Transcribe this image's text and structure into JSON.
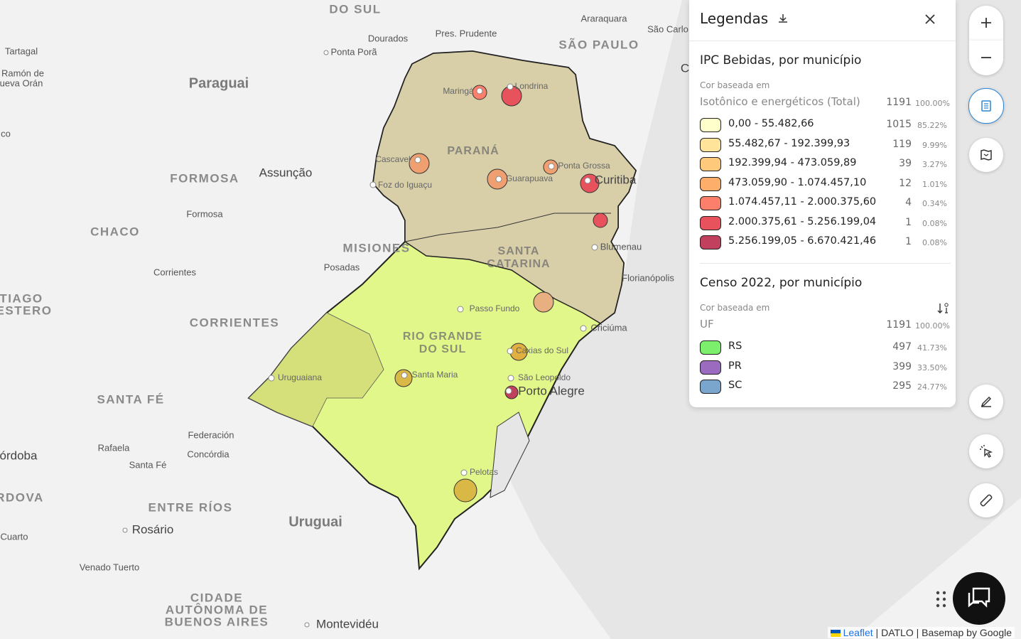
{
  "legend": {
    "title": "Legendas",
    "sections": [
      {
        "title": "IPC Bebidas, por município",
        "based_on_label": "Cor baseada em",
        "variable": "Isotônico e energéticos (Total)",
        "total": 1191,
        "total_pct": "100.00%",
        "items": [
          {
            "label": "0,00 - 55.482,66",
            "color": "#ffffcc",
            "count": 1015,
            "pct": "85.22%"
          },
          {
            "label": "55.482,67 - 192.399,93",
            "color": "#fee39b",
            "count": 119,
            "pct": "9.99%"
          },
          {
            "label": "192.399,94 - 473.059,89",
            "color": "#fec97a",
            "count": 39,
            "pct": "3.27%"
          },
          {
            "label": "473.059,90 - 1.074.457,10",
            "color": "#fdae6b",
            "count": 12,
            "pct": "1.01%"
          },
          {
            "label": "1.074.457,11 - 2.000.375,60",
            "color": "#fb7f6a",
            "count": 4,
            "pct": "0.34%"
          },
          {
            "label": "2.000.375,61 - 5.256.199,04",
            "color": "#e8525d",
            "count": 1,
            "pct": "0.08%"
          },
          {
            "label": "5.256.199,05 - 6.670.421,46",
            "color": "#c0405e",
            "count": 1,
            "pct": "0.08%"
          }
        ]
      },
      {
        "title": "Censo 2022, por município",
        "based_on_label": "Cor baseada em",
        "variable": "UF",
        "total": 1191,
        "total_pct": "100.00%",
        "items": [
          {
            "label": "RS",
            "color": "#7cf06c",
            "count": 497,
            "pct": "41.73%"
          },
          {
            "label": "PR",
            "color": "#9b6bc0",
            "count": 399,
            "pct": "33.50%"
          },
          {
            "label": "SC",
            "color": "#7aa5cc",
            "count": 295,
            "pct": "24.77%"
          }
        ]
      }
    ]
  },
  "map": {
    "labels": [
      "DO SUL",
      "Araraquara",
      "São Carlo",
      "Dourados",
      "Pres. Prudente",
      "SÃO PAULO",
      "Ponta Porã",
      "Tartagal",
      "Ramón de",
      "ueva Orán",
      "Paraguai",
      "co",
      "FORMOSA",
      "Assunção",
      "Formosa",
      "CHACO",
      "MISIONES",
      "Posadas",
      "Corrientes",
      "TIAGO",
      "ESTERO",
      "CORRIENTES",
      "SANTA FÉ",
      "Federación",
      "Rafaela",
      "Concórdia",
      "Santa Fé",
      "órdoba",
      "RDOVA",
      "ENTRE RÍOS",
      "Uruguai",
      "Rosário",
      "Cuarto",
      "Venado Tuerto",
      "CIDADE",
      "AUTÔNOMA DE",
      "BUENOS AIRES",
      "Montevidéu",
      "C",
      "Maringá",
      "Londrina",
      "PARANÁ",
      "Cascavel",
      "Foz do Iguaçu",
      "Guarapuava",
      "Ponta Grossa",
      "Curitiba",
      "Blumenau",
      "SANTA",
      "CATARINA",
      "Florianópolis",
      "Passo Fundo",
      "Criciúma",
      "RIO GRANDE",
      "DO SUL",
      "Caxias do Sul",
      "Uruguaiana",
      "Santa Maria",
      "São Leopoldo",
      "Porto Alegre",
      "Pelotas"
    ]
  },
  "attribution": {
    "items": [
      "Leaflet",
      "DATLO",
      "Basemap by Google"
    ],
    "separator": "|"
  }
}
